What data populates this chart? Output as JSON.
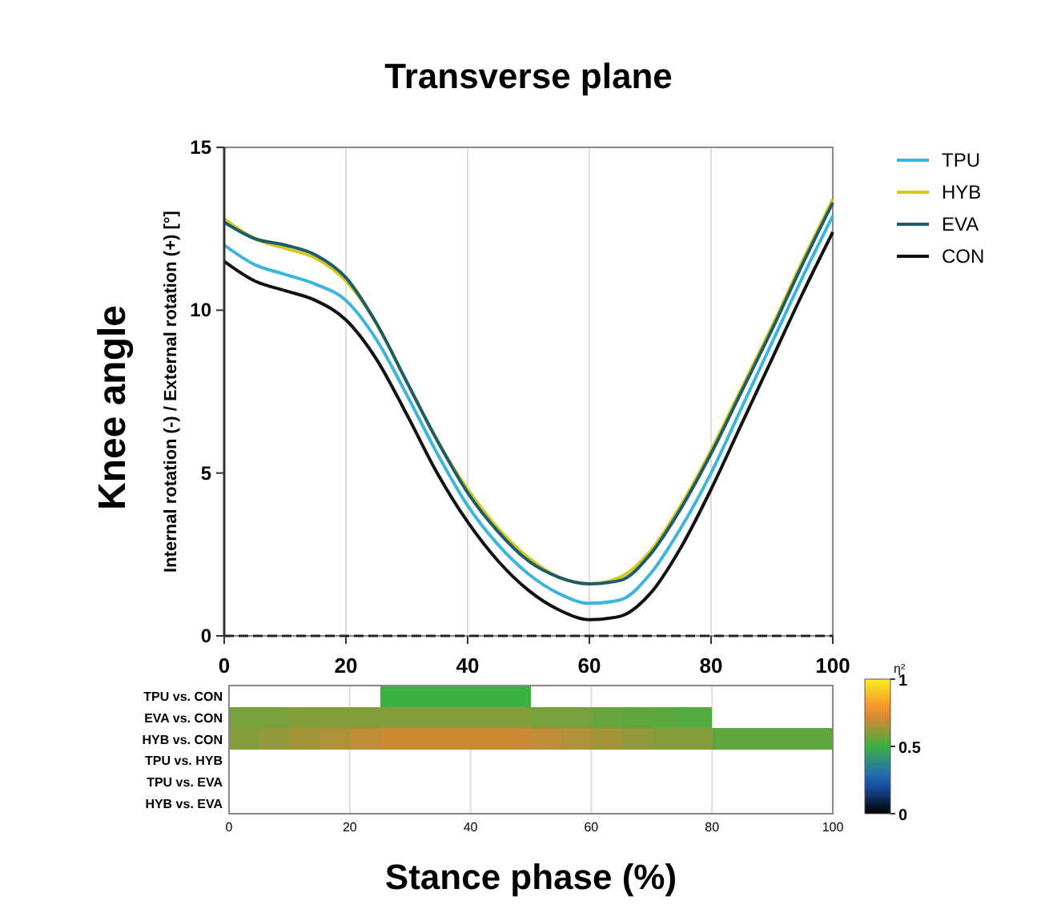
{
  "chart_data": [
    {
      "type": "line",
      "title": "Transverse plane",
      "ylabel": "Internal rotation (-) / External rotation (+) [°]",
      "annotations": [
        "Knee angle"
      ],
      "x": [
        0,
        5,
        10,
        15,
        20,
        25,
        30,
        35,
        40,
        45,
        50,
        55,
        60,
        65,
        70,
        75,
        80,
        85,
        90,
        95,
        100
      ],
      "series": [
        {
          "name": "TPU",
          "color": "#3cb4dc",
          "values": [
            12.0,
            11.4,
            11.1,
            10.8,
            10.3,
            9.1,
            7.4,
            5.6,
            4.0,
            2.8,
            1.9,
            1.3,
            1.0,
            1.1,
            1.9,
            3.3,
            5.0,
            7.0,
            9.0,
            11.0,
            12.9
          ]
        },
        {
          "name": "HYB",
          "color": "#d4c81c",
          "values": [
            12.8,
            12.2,
            11.9,
            11.6,
            10.9,
            9.6,
            7.8,
            6.0,
            4.5,
            3.3,
            2.4,
            1.8,
            1.6,
            1.8,
            2.6,
            4.0,
            5.7,
            7.6,
            9.5,
            11.5,
            13.4
          ]
        },
        {
          "name": "EVA",
          "color": "#1d5c6a",
          "values": [
            12.7,
            12.2,
            12.0,
            11.7,
            11.0,
            9.6,
            7.8,
            6.0,
            4.4,
            3.2,
            2.3,
            1.8,
            1.6,
            1.7,
            2.5,
            3.9,
            5.6,
            7.5,
            9.4,
            11.4,
            13.3
          ]
        },
        {
          "name": "CON",
          "color": "#111111",
          "values": [
            11.5,
            10.9,
            10.6,
            10.3,
            9.7,
            8.5,
            6.8,
            5.0,
            3.5,
            2.3,
            1.4,
            0.8,
            0.5,
            0.6,
            1.3,
            2.7,
            4.5,
            6.5,
            8.5,
            10.5,
            12.4
          ]
        }
      ],
      "xlim": [
        0,
        100
      ],
      "xticks": [
        0,
        20,
        40,
        60,
        80,
        100
      ],
      "ylim": [
        0,
        15
      ],
      "yticks": [
        0,
        5,
        10,
        15
      ],
      "grid": "x",
      "legend": "right",
      "ref_lines": [
        {
          "axis": "y",
          "value": 0,
          "line_style": "dashed",
          "color": "#222222"
        }
      ]
    },
    {
      "type": "heatmap",
      "xlabel": "Stance phase (%)",
      "clabel": "η²",
      "x": [
        2.5,
        7.5,
        12.5,
        17.5,
        22.5,
        27.5,
        32.5,
        37.5,
        42.5,
        47.5,
        52.5,
        57.5,
        62.5,
        67.5,
        72.5,
        77.5,
        82.5,
        87.5,
        92.5,
        97.5
      ],
      "y_categories": [
        "TPU vs. CON",
        "EVA vs. CON",
        "HYB vs. CON",
        "TPU vs. HYB",
        "TPU vs. EVA",
        "HYB vs. EVA"
      ],
      "cells": [
        [
          null,
          null,
          null,
          null,
          null,
          0.5,
          0.5,
          0.5,
          0.5,
          0.5,
          null,
          null,
          null,
          null,
          null,
          null,
          null,
          null,
          null,
          null
        ],
        [
          0.58,
          0.58,
          0.6,
          0.6,
          0.6,
          0.6,
          0.6,
          0.6,
          0.6,
          0.6,
          0.58,
          0.58,
          0.56,
          0.55,
          0.54,
          0.53,
          null,
          null,
          null,
          null
        ],
        [
          0.6,
          0.62,
          0.64,
          0.66,
          0.68,
          0.7,
          0.7,
          0.7,
          0.7,
          0.7,
          0.68,
          0.66,
          0.64,
          0.62,
          0.6,
          0.6,
          0.55,
          0.55,
          0.55,
          0.55
        ],
        [
          null,
          null,
          null,
          null,
          null,
          null,
          null,
          null,
          null,
          null,
          null,
          null,
          null,
          null,
          null,
          null,
          null,
          null,
          null,
          null
        ],
        [
          null,
          null,
          null,
          null,
          null,
          null,
          null,
          null,
          null,
          null,
          null,
          null,
          null,
          null,
          null,
          null,
          null,
          null,
          null,
          null
        ],
        [
          null,
          null,
          null,
          null,
          null,
          null,
          null,
          null,
          null,
          null,
          null,
          null,
          null,
          null,
          null,
          null,
          null,
          null,
          null,
          null
        ]
      ],
      "xlim": [
        0,
        100
      ],
      "xticks": [
        0,
        20,
        40,
        60,
        80,
        100
      ],
      "clim": [
        0,
        1
      ],
      "cticks": [
        0,
        0.5,
        1
      ],
      "grid": "x"
    }
  ]
}
